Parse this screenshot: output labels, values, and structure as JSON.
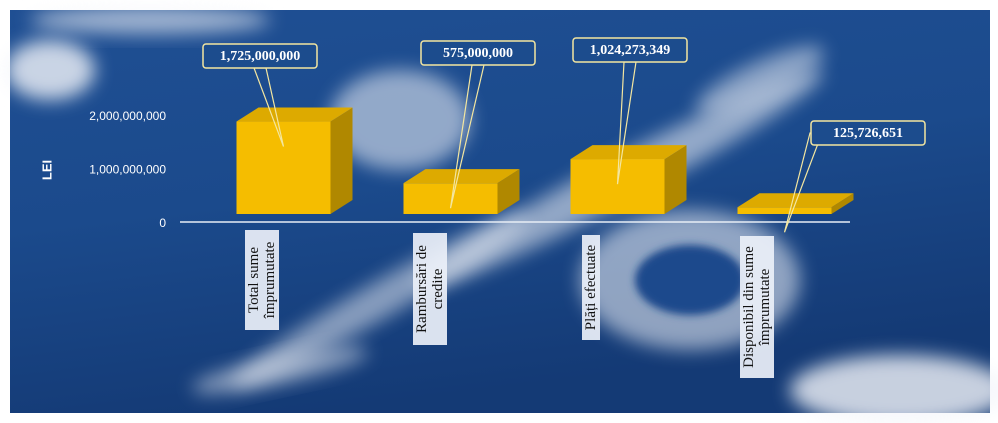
{
  "chart_data": {
    "type": "bar3d",
    "y_label": "LEI",
    "categories": [
      "Total sume împrumutate",
      "Rambursări de credite",
      "Plăți efectuate",
      "Disponibil din sume împrumutate"
    ],
    "values": [
      1725000000,
      575000000,
      1024273349,
      125726651
    ],
    "value_labels": [
      "1,725,000,000",
      "575,000,000",
      "1,024,273,349",
      "125,726,651"
    ],
    "color": "#f5bd00",
    "ylim": [
      0,
      2500000000
    ],
    "yticks": [
      {
        "value": 0,
        "label": "0"
      },
      {
        "value": 1000000000,
        "label": "1,000,000,000"
      },
      {
        "value": 2000000000,
        "label": "2,000,000,000"
      }
    ]
  }
}
